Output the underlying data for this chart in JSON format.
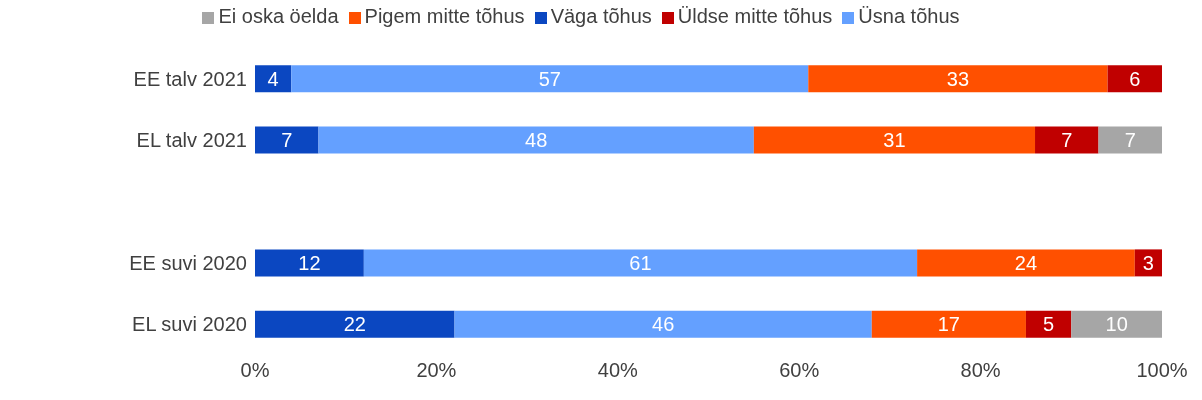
{
  "chart_data": {
    "type": "bar",
    "orientation": "horizontal",
    "stacked": true,
    "data_labels": true,
    "legend": "top",
    "categories": [
      "EE talv 2021",
      "EL talv 2021",
      null,
      "EE suvi 2020",
      "EL suvi 2020"
    ],
    "series": [
      {
        "name": "Väga tõhus",
        "color": "#0b47c1",
        "values": [
          4,
          7,
          null,
          12,
          22
        ]
      },
      {
        "name": "Üsna tõhus",
        "color": "#64a0ff",
        "values": [
          57,
          48,
          null,
          61,
          46
        ]
      },
      {
        "name": "Pigem mitte tõhus",
        "color": "#ff5000",
        "values": [
          33,
          31,
          null,
          24,
          17
        ]
      },
      {
        "name": "Üldse mitte tõhus",
        "color": "#c00000",
        "values": [
          6,
          7,
          null,
          3,
          5
        ]
      },
      {
        "name": "Ei oska öelda",
        "color": "#a6a6a6",
        "values": [
          null,
          7,
          null,
          null,
          10
        ]
      }
    ],
    "xlim": [
      0,
      100
    ],
    "xticks": [
      {
        "value": 0,
        "label": "0%"
      },
      {
        "value": 20,
        "label": "20%"
      },
      {
        "value": 40,
        "label": "40%"
      },
      {
        "value": 60,
        "label": "60%"
      },
      {
        "value": 80,
        "label": "80%"
      },
      {
        "value": 100,
        "label": "100%"
      }
    ]
  }
}
